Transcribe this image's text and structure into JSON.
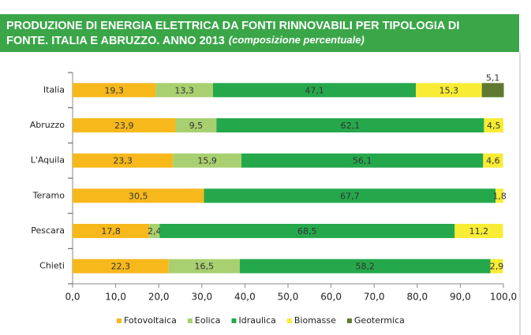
{
  "chart_data": {
    "type": "stacked-bar-horizontal",
    "title": "PRODUZIONE DI ENERGIA ELETTRICA DA FONTI RINNOVABILI PER TIPOLOGIA DI FONTE. ITALIA E ABRUZZO. ANNO 2013",
    "subtitle": "(composizione percentuale)",
    "categories": [
      "Italia",
      "Abruzzo",
      "L'Aquila",
      "Teramo",
      "Pescara",
      "Chieti"
    ],
    "series": [
      {
        "name": "Fotovoltaica",
        "color": "#f7b81c",
        "values": [
          19.3,
          23.9,
          23.3,
          30.5,
          17.8,
          22.3
        ],
        "value_labels": [
          "19,3",
          "23,9",
          "23,3",
          "30,5",
          "17,8",
          "22,3"
        ]
      },
      {
        "name": "Eolica",
        "color": "#a8d070",
        "values": [
          13.3,
          9.5,
          15.9,
          null,
          2.4,
          16.5
        ],
        "value_labels": [
          "13,3",
          "9,5",
          "15,9",
          null,
          "2,4",
          "16,5"
        ]
      },
      {
        "name": "Idraulica",
        "color": "#25a84b",
        "values": [
          47.1,
          62.1,
          56.1,
          67.7,
          68.5,
          58.2
        ],
        "value_labels": [
          "47,1",
          "62,1",
          "56,1",
          "67,7",
          "68,5",
          "58,2"
        ]
      },
      {
        "name": "Biomasse",
        "color": "#f8ec34",
        "values": [
          15.3,
          4.5,
          4.6,
          1.8,
          11.2,
          2.9
        ],
        "value_labels": [
          "15,3",
          "4,5",
          "4,6",
          "1,8",
          "11,2",
          "2,9"
        ]
      },
      {
        "name": "Geotermica",
        "color": "#5f7a30",
        "values": [
          5.1,
          null,
          null,
          null,
          null,
          null
        ],
        "value_labels": [
          "5,1",
          null,
          null,
          null,
          null,
          null
        ]
      }
    ],
    "xlim": [
      0,
      100
    ],
    "xticks": [
      {
        "value": 0,
        "label": "0,0"
      },
      {
        "value": 10,
        "label": "10,0"
      },
      {
        "value": 20,
        "label": "20,0"
      },
      {
        "value": 30,
        "label": "30,0"
      },
      {
        "value": 40,
        "label": "40,0"
      },
      {
        "value": 50,
        "label": "50,0"
      },
      {
        "value": 60,
        "label": "60,0"
      },
      {
        "value": 70,
        "label": "70,0"
      },
      {
        "value": 80,
        "label": "80,0"
      },
      {
        "value": 90,
        "label": "90,0"
      },
      {
        "value": 100,
        "label": "100,0"
      }
    ],
    "legend": "bottom"
  }
}
